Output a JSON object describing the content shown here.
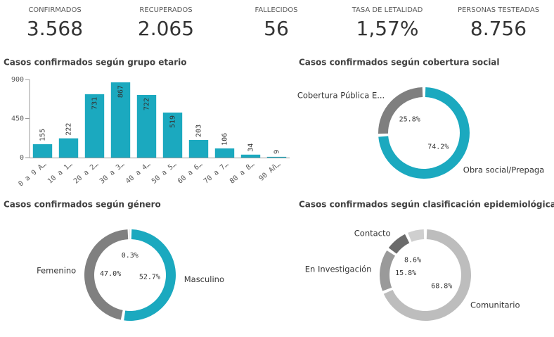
{
  "kpis": [
    {
      "label": "CONFIRMADOS",
      "value": "3.568",
      "color": "#1ba9bf"
    },
    {
      "label": "RECUPERADOS",
      "value": "2.065",
      "color": "#1ba9bf"
    },
    {
      "label": "FALLECIDOS",
      "value": "56",
      "color": "#595959"
    },
    {
      "label": "TASA DE LETALIDAD",
      "value": "1,57%",
      "color": "#595959"
    },
    {
      "label": "PERSONAS TESTEADAS",
      "value": "8.756",
      "color": "#1ba9bf"
    }
  ],
  "chart_data": [
    {
      "type": "bar",
      "title": "Casos confirmados según grupo etario",
      "categories": [
        "0 a 9 A…",
        "10 a 1…",
        "20 a 2…",
        "30 a 3…",
        "40 a 4…",
        "50 a 5…",
        "60 a 6…",
        "70 a 7…",
        "80 a 8…",
        "90 Añ…"
      ],
      "values": [
        155,
        222,
        731,
        867,
        722,
        519,
        203,
        106,
        34,
        9
      ],
      "color": "#1ba9bf",
      "ylim": [
        0,
        900
      ],
      "yticks": [
        0,
        450,
        900
      ]
    },
    {
      "type": "donut",
      "title": "Casos confirmados según cobertura social",
      "categories": [
        "Obra social/Prepaga",
        "Cobertura Pública E..."
      ],
      "values": [
        74.2,
        25.8
      ],
      "value_labels": [
        "74.2%",
        "25.8%"
      ],
      "colors": [
        "#1ba9bf",
        "#7f7f7f"
      ]
    },
    {
      "type": "donut",
      "title": "Casos confirmados según género",
      "categories": [
        "Masculino",
        "Femenino",
        null
      ],
      "values": [
        52.7,
        47.0,
        0.3
      ],
      "value_labels": [
        "52.7%",
        "47.0%",
        "0.3%"
      ],
      "colors": [
        "#1ba9bf",
        "#808080",
        "#c4c4c4"
      ]
    },
    {
      "type": "donut",
      "title": "Casos confirmados según clasificación epidemiológica",
      "categories": [
        "Comunitario",
        "En Investigación",
        "Contacto",
        null
      ],
      "values": [
        68.8,
        15.8,
        8.6,
        6.8
      ],
      "value_labels": [
        "68.8%",
        "15.8%",
        "8.6%",
        null
      ],
      "colors": [
        "#bdbdbd",
        "#9a9a9a",
        "#6b6b6b",
        "#cfcfcf"
      ]
    }
  ]
}
